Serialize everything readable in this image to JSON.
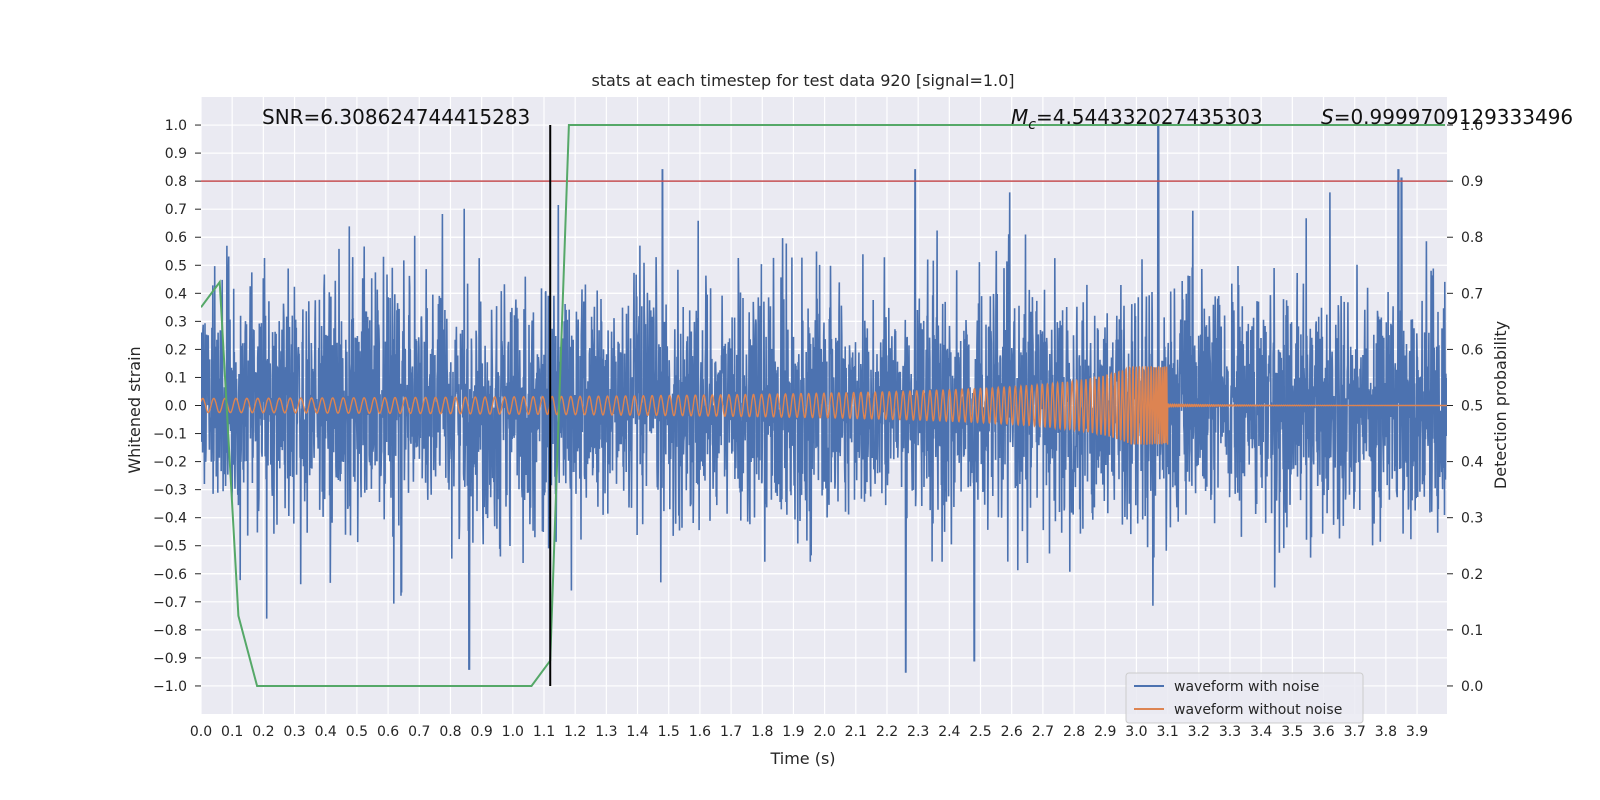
{
  "chart_data": {
    "type": "line",
    "title": "stats at each timestep for test data 920 [signal=1.0]",
    "xlabel": "Time (s)",
    "ylabel": "Whitened strain",
    "y2label": "Detection probability",
    "xlim": [
      0.0,
      3.996
    ],
    "ylim": [
      -1.1,
      1.1
    ],
    "y2lim": [
      -0.05,
      1.0
    ],
    "xticks": [
      "0.0",
      "0.1",
      "0.2",
      "0.3",
      "0.4",
      "0.5",
      "0.6",
      "0.7",
      "0.8",
      "0.9",
      "1.0",
      "1.1",
      "1.2",
      "1.3",
      "1.4",
      "1.5",
      "1.6",
      "1.7",
      "1.8",
      "1.9",
      "2.0",
      "2.1",
      "2.2",
      "2.3",
      "2.4",
      "2.5",
      "2.6",
      "2.7",
      "2.8",
      "2.9",
      "3.0",
      "3.1",
      "3.2",
      "3.3",
      "3.4",
      "3.5",
      "3.6",
      "3.7",
      "3.8",
      "3.9"
    ],
    "yticks": [
      "1.0",
      "0.9",
      "0.8",
      "0.7",
      "0.6",
      "0.5",
      "0.4",
      "0.3",
      "0.2",
      "0.1",
      "0.0",
      "−0.1",
      "−0.2",
      "−0.3",
      "−0.4",
      "−0.5",
      "−0.6",
      "−0.7",
      "−0.8",
      "−0.9",
      "−1.0"
    ],
    "y2ticks": [
      "1.0",
      "0.9",
      "0.8",
      "0.7",
      "0.6",
      "0.5",
      "0.4",
      "0.3",
      "0.2",
      "0.1",
      "0.0"
    ],
    "grid": true,
    "legend_position": "lower-right",
    "annotations": {
      "snr": "SNR=6.308624744415283",
      "mc_symbol": "M",
      "mc_sub": "c",
      "mc_value": "=4.544332027435303",
      "s_symbol": "S",
      "s_value": "=0.9999709129333496"
    },
    "threshold_line_y": 0.8,
    "detection_time": 1.12,
    "series": [
      {
        "name": "waveform with noise",
        "color": "#4c72b0",
        "description_values": "whitened strain noise, peaks mostly within ±0.6",
        "highlight_peaks": [
          [
            0.86,
            -0.94
          ],
          [
            1.48,
            0.84
          ],
          [
            2.26,
            -0.95
          ],
          [
            2.29,
            0.84
          ],
          [
            2.48,
            -0.91
          ],
          [
            3.07,
            1.0
          ],
          [
            3.84,
            0.84
          ],
          [
            3.85,
            0.81
          ]
        ]
      },
      {
        "name": "waveform without noise",
        "color": "#dd8452",
        "amplitude_start": 0.025,
        "amplitude_peak": 0.14,
        "merger_time": 3.1
      },
      {
        "name": "detection probability",
        "color": "#55a868",
        "x": [
          0.0,
          0.06,
          0.12,
          0.18,
          0.24,
          0.3,
          0.6,
          0.9,
          1.06,
          1.12,
          1.18,
          1.5,
          2.0,
          2.5,
          3.0,
          3.5,
          3.99
        ],
        "y": [
          0.675,
          0.72,
          0.125,
          0.0,
          0.0,
          0.0,
          0.0,
          0.0,
          0.0,
          0.045,
          1.0,
          1.0,
          1.0,
          1.0,
          1.0,
          1.0,
          1.0
        ]
      }
    ],
    "colors": {
      "plot_bg": "#eaeaf2",
      "grid": "#ffffff",
      "threshold": "#c44e52",
      "vline": "#000000"
    }
  }
}
